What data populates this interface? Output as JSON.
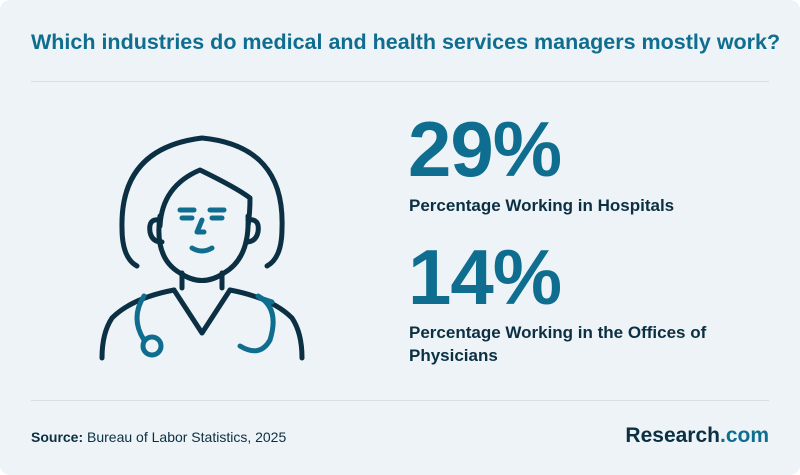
{
  "title": "Which industries do medical and health services managers mostly work?",
  "stats": [
    {
      "value": "29%",
      "label": "Percentage Working in Hospitals"
    },
    {
      "value": "14%",
      "label": "Percentage Working in the Offices of Physicians"
    }
  ],
  "source": {
    "prefix": "Source:",
    "text": "Bureau of Labor Statistics, 2025"
  },
  "brand": {
    "name": "Research",
    "suffix": ".com"
  },
  "illustration": {
    "icon": "doctor-with-stethoscope-icon"
  },
  "colors": {
    "accent": "#0f6e8f",
    "text": "#0b2f43",
    "background": "#edf3f6"
  }
}
